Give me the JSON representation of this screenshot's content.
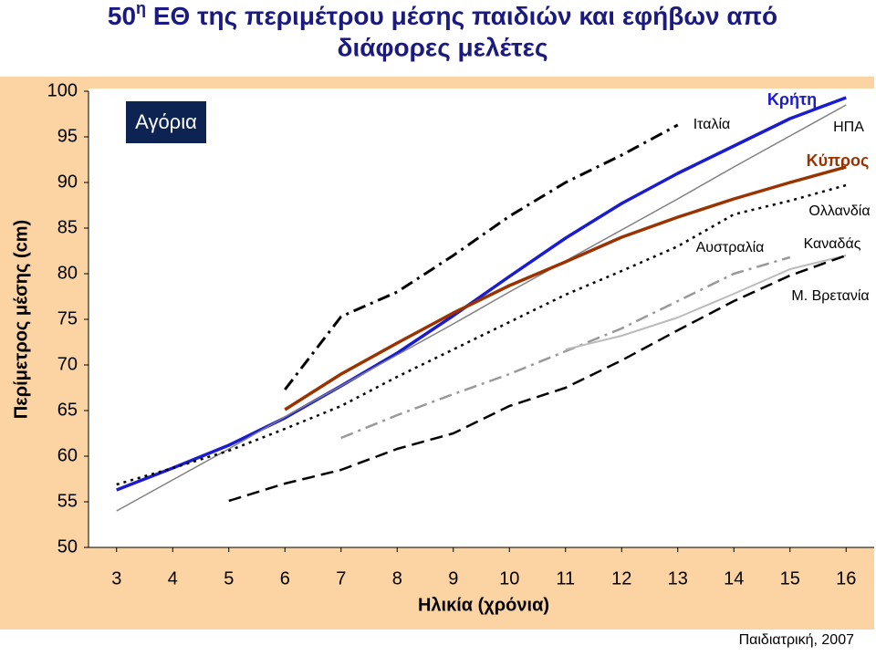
{
  "chart_data": {
    "type": "line",
    "title": {
      "number": "50",
      "sup": "η",
      "text": "ΕΘ της περιμέτρου μέσης παιδιών και εφήβων από",
      "text2": "διάφορες μελέτες"
    },
    "panel_label": "Αγόρια",
    "xlabel": "Ηλικία (χρόνια)",
    "ylabel": "Περίμετρος μέσης (cm)",
    "source": "Παιδιατρική, 2007",
    "x": [
      3,
      4,
      5,
      6,
      7,
      8,
      9,
      10,
      11,
      12,
      13,
      14,
      15,
      16
    ],
    "xlim": [
      2.5,
      16.5
    ],
    "xticks": [
      3,
      4,
      5,
      6,
      7,
      8,
      9,
      10,
      11,
      12,
      13,
      14,
      15,
      16
    ],
    "ylim": [
      50,
      100
    ],
    "yticks": [
      50,
      55,
      60,
      65,
      70,
      75,
      80,
      85,
      90,
      95,
      100
    ],
    "series": [
      {
        "name": "Κρήτη",
        "color": "#1c1ccf",
        "style": "solid",
        "width": 3.5,
        "values": [
          56.3,
          58.7,
          61.2,
          64.2,
          67.7,
          71.3,
          75.4,
          79.7,
          83.9,
          87.7,
          91,
          94,
          97,
          99.3
        ]
      },
      {
        "name": "ΗΠΑ",
        "color": "#808080",
        "style": "solid",
        "width": 1.5,
        "values": [
          54,
          57.4,
          60.8,
          64.3,
          67.7,
          71.1,
          74.5,
          78,
          81.4,
          84.8,
          88.2,
          91.7,
          95.1,
          98.5
        ]
      },
      {
        "name": "Κύπρος",
        "color": "#993300",
        "style": "solid",
        "width": 3.5,
        "values": [
          null,
          null,
          null,
          65.1,
          69,
          72.4,
          75.7,
          78.7,
          81.3,
          84,
          86.2,
          88.2,
          90,
          91.7
        ]
      },
      {
        "name": "Ιταλία",
        "color": "#000000",
        "style": "dashdot",
        "width": 3,
        "values": [
          null,
          null,
          null,
          67.3,
          75.3,
          78,
          82,
          86.3,
          90,
          93,
          96.3,
          null,
          null,
          null
        ]
      },
      {
        "name": "Ολλανδία",
        "color": "#000000",
        "style": "dotted",
        "width": 2.5,
        "values": [
          56.9,
          58.7,
          60.6,
          63,
          65.5,
          68.7,
          71.7,
          74.7,
          77.7,
          80.3,
          83,
          86.5,
          88,
          89.7
        ]
      },
      {
        "name": "Καναδάς",
        "color": "#999999",
        "style": "dashdot",
        "width": 2.5,
        "values": [
          null,
          null,
          null,
          null,
          62,
          64.5,
          66.8,
          69,
          71.5,
          74,
          77,
          80,
          81.8,
          null
        ]
      },
      {
        "name": "Αυστραλία",
        "color": "#bbbbbb",
        "style": "solid",
        "width": 2,
        "values": [
          null,
          null,
          null,
          null,
          null,
          null,
          null,
          null,
          71.7,
          73.2,
          75.2,
          77.8,
          80.5,
          82
        ]
      },
      {
        "name": "Μ. Βρετανία",
        "color": "#000000",
        "style": "dashed",
        "width": 2.5,
        "values": [
          null,
          null,
          55.1,
          57,
          58.5,
          60.8,
          62.5,
          65.5,
          67.5,
          70.5,
          73.8,
          77,
          79.8,
          82
        ]
      }
    ]
  }
}
